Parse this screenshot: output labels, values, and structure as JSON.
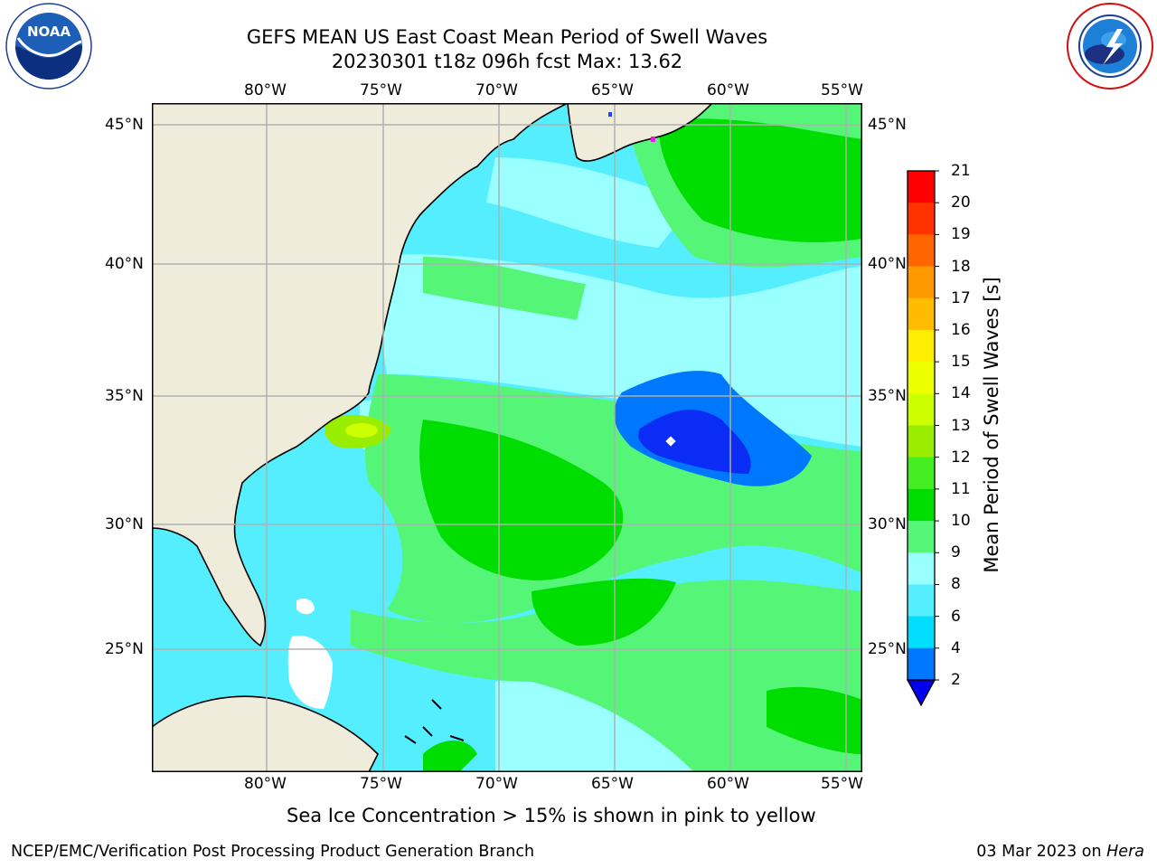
{
  "header": {
    "title_line1": "GEFS MEAN US East Coast Mean Period of Swell Waves",
    "title_line2": "20230301 t18z 096h fcst   Max: 13.62"
  },
  "logos": {
    "left": {
      "name": "noaa-logo",
      "text": "NOAA",
      "ring_text": "NATIONAL OCEANIC AND ATMOSPHERIC ADMINISTRATION · U.S. DEPARTMENT OF COMMERCE"
    },
    "right": {
      "name": "nws-logo",
      "ring_text": "NATIONAL WEATHER SERVICE"
    }
  },
  "map": {
    "lon_labels": [
      "80°W",
      "75°W",
      "70°W",
      "65°W",
      "60°W",
      "55°W"
    ],
    "lat_labels": [
      "45°N",
      "40°N",
      "35°N",
      "30°N",
      "25°N"
    ],
    "lon_range": [
      -84.9,
      -54.4
    ],
    "lat_range": [
      20.5,
      45.8
    ],
    "land_color": "#efecdc",
    "grid_color": "#b0b0b0"
  },
  "colorbar": {
    "label": "Mean Period of Swell Waves [s]",
    "ticks": [
      "2",
      "4",
      "6",
      "8",
      "9",
      "10",
      "11",
      "12",
      "13",
      "14",
      "15",
      "16",
      "17",
      "18",
      "19",
      "20",
      "21"
    ],
    "colors": [
      "#0a2cf5",
      "#0077ff",
      "#00ddff",
      "#55eeff",
      "#99ffff",
      "#55f577",
      "#00dd00",
      "#44ee22",
      "#99ee00",
      "#ccff00",
      "#eeff00",
      "#ffee00",
      "#ffbb00",
      "#ff9900",
      "#ff6600",
      "#ff3300",
      "#ff0000"
    ],
    "under_color": "#0000ee"
  },
  "notes": {
    "sea_ice": "Sea Ice Concentration > 15% is shown in pink to yellow"
  },
  "footer": {
    "left": "NCEP/EMC/Verification Post Processing Product Generation Branch",
    "right_date": "03 Mar 2023 on ",
    "right_host": "Hera"
  }
}
